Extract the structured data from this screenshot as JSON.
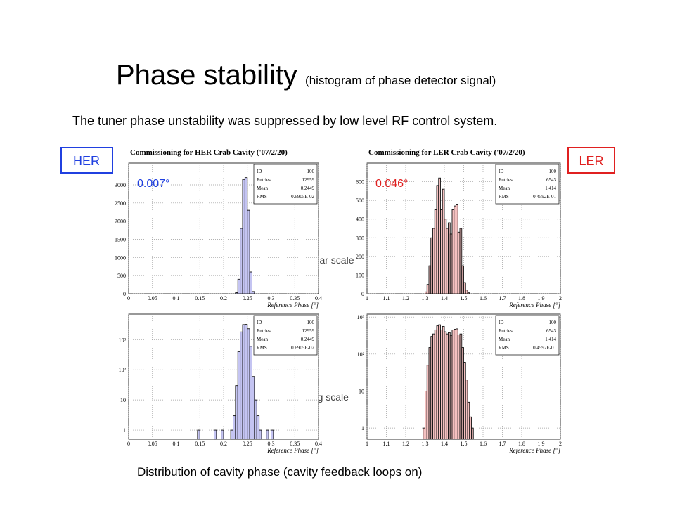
{
  "slide": {
    "title": "Phase stability",
    "subtitle": "(histogram of phase detector signal)",
    "lead": "The tuner phase unstability was suppressed by low level RF control system.",
    "her_label": "HER",
    "ler_label": "LER",
    "linear_label": "Linear scale",
    "log_label": "Log scale",
    "caption": "Distribution of cavity phase (cavity feedback loops on)"
  },
  "chart_data": [
    {
      "type": "histogram",
      "title": "Commissioning for HER Crab Cavity ('07/2/20)",
      "xlabel": "Reference Phase [°]",
      "annotation": {
        "text": "0.007°",
        "color": "#2040e0"
      },
      "stats": [
        {
          "label": "ID",
          "value": 100
        },
        {
          "label": "Entries",
          "value": 12959
        },
        {
          "label": "Mean",
          "value": 0.2449
        },
        {
          "label": "RMS",
          "value": "0.6905E-02"
        }
      ],
      "bins": [
        0.225,
        0.23,
        0.235,
        0.24,
        0.245,
        0.25,
        0.255,
        0.26,
        0.265
      ],
      "values": [
        30,
        400,
        1800,
        3150,
        3200,
        2300,
        600,
        60
      ],
      "color": "#c4c4f2",
      "xlim": [
        0,
        0.4
      ],
      "xticks": [
        0,
        0.05,
        0.1,
        0.15,
        0.2,
        0.25,
        0.3,
        0.35,
        0.4
      ],
      "ylim": [
        0,
        3600
      ],
      "yticks": [
        0,
        500,
        1000,
        1500,
        2000,
        2500,
        3000
      ],
      "grid": true,
      "log_y": false
    },
    {
      "type": "histogram",
      "title": "Commissioning for LER Crab Cavity ('07/2/20)",
      "xlabel": "Reference Phase [°]",
      "annotation": {
        "text": "0.046°",
        "color": "#e02020"
      },
      "stats": [
        {
          "label": "ID",
          "value": 100
        },
        {
          "label": "Entries",
          "value": 6543
        },
        {
          "label": "Mean",
          "value": 1.414
        },
        {
          "label": "RMS",
          "value": "0.4592E-01"
        }
      ],
      "bins": [
        1.3,
        1.31,
        1.32,
        1.33,
        1.34,
        1.35,
        1.36,
        1.37,
        1.38,
        1.39,
        1.4,
        1.41,
        1.42,
        1.43,
        1.44,
        1.45,
        1.46,
        1.47,
        1.48,
        1.49,
        1.5,
        1.51,
        1.52,
        1.53
      ],
      "values": [
        10,
        50,
        150,
        300,
        350,
        450,
        580,
        620,
        450,
        560,
        400,
        350,
        380,
        320,
        450,
        470,
        480,
        330,
        350,
        150,
        60,
        20,
        5
      ],
      "color": "#f4c0c0",
      "xlim": [
        1,
        2
      ],
      "xticks": [
        1,
        1.1,
        1.2,
        1.3,
        1.4,
        1.5,
        1.6,
        1.7,
        1.8,
        1.9,
        2
      ],
      "ylim": [
        0,
        700
      ],
      "yticks": [
        0,
        100,
        200,
        300,
        400,
        500,
        600
      ],
      "grid": true,
      "log_y": false
    },
    {
      "type": "histogram",
      "xlabel": "Reference Phase [°]",
      "stats": [
        {
          "label": "ID",
          "value": 100
        },
        {
          "label": "Entries",
          "value": 12959
        },
        {
          "label": "Mean",
          "value": 0.2449
        },
        {
          "label": "RMS",
          "value": "0.6905E-02"
        }
      ],
      "bins": [
        0.14,
        0.145,
        0.15,
        0.155,
        0.16,
        0.165,
        0.17,
        0.175,
        0.18,
        0.185,
        0.19,
        0.195,
        0.2,
        0.205,
        0.21,
        0.215,
        0.22,
        0.225,
        0.23,
        0.235,
        0.24,
        0.245,
        0.25,
        0.255,
        0.26,
        0.265,
        0.27,
        0.275,
        0.28,
        0.285,
        0.29,
        0.295,
        0.3,
        0.305,
        0.31
      ],
      "values": [
        0,
        1,
        0,
        0,
        0,
        0,
        0,
        0,
        1,
        0,
        0,
        1,
        0,
        0,
        0,
        1,
        3,
        30,
        400,
        1800,
        3150,
        3200,
        2300,
        600,
        60,
        10,
        3,
        1,
        0,
        0,
        1,
        0,
        1,
        0
      ],
      "color": "#c4c4f2",
      "xlim": [
        0,
        0.4
      ],
      "xticks": [
        0,
        0.05,
        0.1,
        0.15,
        0.2,
        0.25,
        0.3,
        0.35,
        0.4
      ],
      "ylim": [
        0.5,
        7000
      ],
      "yticks": [
        1,
        10,
        {
          "value": 100,
          "label": "10²"
        },
        {
          "value": 1000,
          "label": "10³"
        }
      ],
      "grid": true,
      "log_y": true
    },
    {
      "type": "histogram",
      "xlabel": "Reference Phase [°]",
      "stats": [
        {
          "label": "ID",
          "value": 100
        },
        {
          "label": "Entries",
          "value": 6543
        },
        {
          "label": "Mean",
          "value": 1.414
        },
        {
          "label": "RMS",
          "value": "0.4592E-01"
        }
      ],
      "bins": [
        1.29,
        1.3,
        1.31,
        1.32,
        1.33,
        1.34,
        1.35,
        1.36,
        1.37,
        1.38,
        1.39,
        1.4,
        1.41,
        1.42,
        1.43,
        1.44,
        1.45,
        1.46,
        1.47,
        1.48,
        1.49,
        1.5,
        1.51,
        1.52,
        1.53,
        1.54,
        1.55
      ],
      "values": [
        1,
        10,
        50,
        150,
        300,
        350,
        450,
        580,
        620,
        450,
        560,
        400,
        350,
        380,
        320,
        450,
        470,
        480,
        330,
        350,
        150,
        60,
        20,
        5,
        2,
        1
      ],
      "color": "#f4c0c0",
      "xlim": [
        1,
        2
      ],
      "xticks": [
        1,
        1.1,
        1.2,
        1.3,
        1.4,
        1.5,
        1.6,
        1.7,
        1.8,
        1.9,
        2
      ],
      "ylim": [
        0.5,
        1200
      ],
      "yticks": [
        1,
        10,
        {
          "value": 100,
          "label": "10²"
        },
        {
          "value": 1000,
          "label": "10³"
        }
      ],
      "grid": true,
      "log_y": true
    }
  ]
}
